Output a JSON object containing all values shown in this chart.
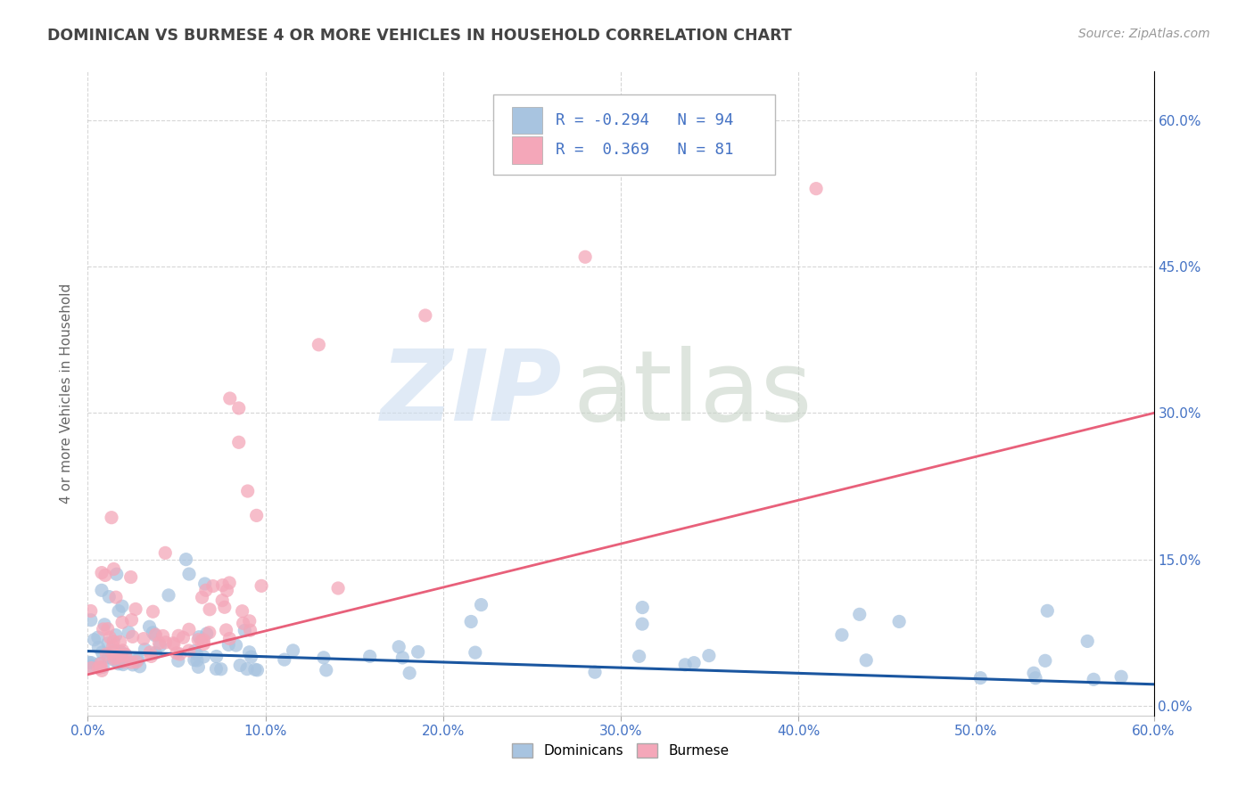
{
  "title": "DOMINICAN VS BURMESE 4 OR MORE VEHICLES IN HOUSEHOLD CORRELATION CHART",
  "source": "Source: ZipAtlas.com",
  "ylabel_label": "4 or more Vehicles in Household",
  "legend_labels": [
    "Dominicans",
    "Burmese"
  ],
  "dominican_R": -0.294,
  "dominican_N": 94,
  "burmese_R": 0.369,
  "burmese_N": 81,
  "dominican_color": "#a8c4e0",
  "burmese_color": "#f4a7b9",
  "dominican_line_color": "#1a56a0",
  "burmese_line_color": "#e8607a",
  "background_color": "#ffffff",
  "grid_color": "#cccccc",
  "title_color": "#444444",
  "axis_color": "#4472c4",
  "xlim": [
    0.0,
    0.6
  ],
  "ylim": [
    -0.01,
    0.65
  ],
  "x_tick_vals": [
    0.0,
    0.1,
    0.2,
    0.3,
    0.4,
    0.5,
    0.6
  ],
  "x_tick_labels": [
    "0.0%",
    "10.0%",
    "20.0%",
    "30.0%",
    "40.0%",
    "50.0%",
    "60.0%"
  ],
  "y_tick_vals": [
    0.0,
    0.15,
    0.3,
    0.45,
    0.6
  ],
  "y_tick_labels": [
    "0.0%",
    "15.0%",
    "30.0%",
    "45.0%",
    "60.0%"
  ],
  "dom_line_x0": 0.0,
  "dom_line_y0": 0.056,
  "dom_line_x1": 0.6,
  "dom_line_y1": 0.022,
  "bur_line_x0": 0.0,
  "bur_line_y0": 0.032,
  "bur_line_x1": 0.6,
  "bur_line_y1": 0.3
}
